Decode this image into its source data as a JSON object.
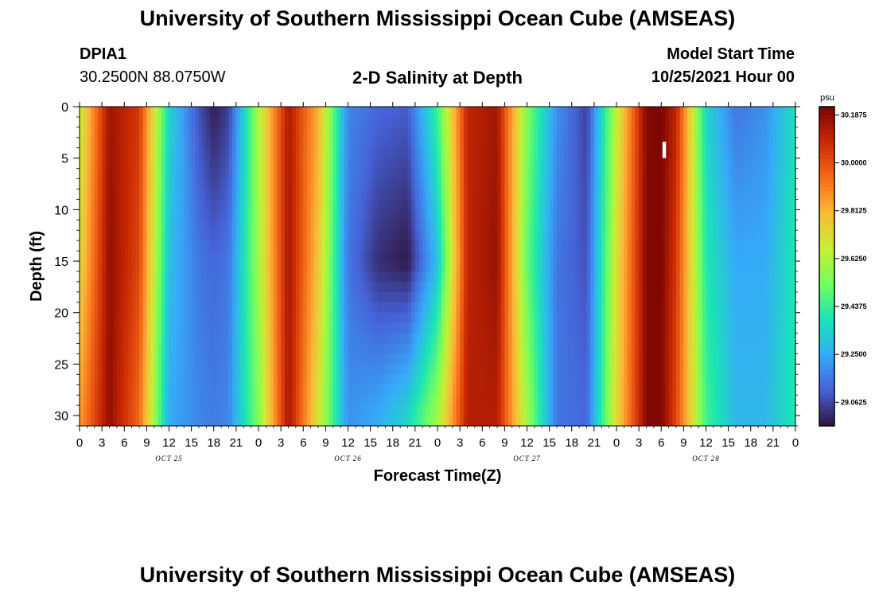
{
  "header": {
    "title": "University of Southern Mississippi Ocean Cube (AMSEAS)",
    "station_id": "DPIA1",
    "station_coords": "30.2500N  88.0750W",
    "plot_title": "2-D Salinity at Depth",
    "model_start_label": "Model Start Time",
    "model_start_value": "10/25/2021 Hour 00"
  },
  "footer": {
    "title": "University of Southern Mississippi Ocean Cube (AMSEAS)"
  },
  "chart_data": {
    "type": "heatmap",
    "title": "2-D Salinity at Depth",
    "xlabel": "Forecast Time(Z)",
    "ylabel": "Depth (ft)",
    "x_ticks": [
      "0",
      "3",
      "6",
      "9",
      "12",
      "15",
      "18",
      "21",
      "0",
      "3",
      "6",
      "9",
      "12",
      "15",
      "18",
      "21",
      "0",
      "3",
      "6",
      "9",
      "12",
      "15",
      "18",
      "21",
      "0",
      "3",
      "6",
      "9",
      "12",
      "15",
      "18",
      "21",
      "0"
    ],
    "x_hours_range": [
      0,
      96
    ],
    "date_labels": [
      {
        "label": "OCT 25",
        "hour": 12
      },
      {
        "label": "OCT 26",
        "hour": 36
      },
      {
        "label": "OCT 27",
        "hour": 60
      },
      {
        "label": "OCT 28",
        "hour": 84
      }
    ],
    "y_ticks": [
      "0",
      "5",
      "10",
      "15",
      "20",
      "25",
      "30"
    ],
    "ylim": [
      0,
      31
    ],
    "y_inverted": true,
    "colorbar": {
      "unit": "psu",
      "vmin": 28.97,
      "vmax": 30.22,
      "labels": [
        "30.1875",
        "30.0000",
        "29.8125",
        "29.6250",
        "29.4375",
        "29.2500",
        "29.0625"
      ],
      "colors": [
        "#30123b",
        "#4662d7",
        "#36aaf9",
        "#1ae4b6",
        "#72fe5e",
        "#c7ef34",
        "#faba39",
        "#f66b19",
        "#ca2a04",
        "#7a0403"
      ]
    },
    "marker": {
      "label": "I",
      "hour": 78.4,
      "depth_ft": 4
    },
    "series": [
      {
        "name": "salinity_depth_0ft",
        "hours": [
          0,
          4,
          8,
          12,
          16,
          18,
          20,
          24,
          28,
          32,
          36,
          40,
          44,
          48,
          52,
          56,
          60,
          64,
          68,
          72,
          76,
          78,
          80,
          84,
          88,
          92,
          96
        ],
        "values": [
          29.65,
          30.16,
          30.05,
          29.35,
          29.08,
          28.99,
          29.05,
          29.62,
          30.14,
          29.82,
          29.18,
          29.12,
          29.1,
          29.45,
          30.1,
          30.15,
          29.55,
          29.2,
          29.05,
          29.65,
          30.2,
          30.22,
          30.1,
          29.35,
          29.15,
          29.2,
          29.38
        ]
      },
      {
        "name": "salinity_depth_15ft",
        "hours": [
          0,
          4,
          8,
          12,
          16,
          18,
          20,
          24,
          28,
          32,
          36,
          40,
          44,
          48,
          52,
          56,
          60,
          64,
          68,
          72,
          76,
          78,
          80,
          84,
          88,
          92,
          96
        ],
        "values": [
          29.72,
          30.18,
          30.02,
          29.3,
          29.15,
          29.12,
          29.15,
          29.6,
          30.15,
          29.78,
          29.15,
          29.02,
          28.98,
          29.3,
          30.1,
          30.17,
          29.5,
          29.15,
          29.08,
          29.7,
          30.2,
          30.21,
          30.05,
          29.4,
          29.25,
          29.25,
          29.4
        ]
      },
      {
        "name": "salinity_depth_30ft",
        "hours": [
          0,
          4,
          8,
          12,
          16,
          18,
          20,
          24,
          28,
          32,
          36,
          40,
          44,
          48,
          52,
          56,
          60,
          64,
          68,
          72,
          76,
          78,
          80,
          84,
          88,
          92,
          96
        ],
        "values": [
          29.85,
          30.18,
          29.95,
          29.25,
          29.18,
          29.16,
          29.18,
          29.55,
          30.15,
          29.7,
          29.2,
          29.25,
          29.35,
          29.6,
          30.12,
          30.12,
          29.6,
          29.15,
          29.12,
          29.72,
          30.2,
          30.21,
          30.02,
          29.45,
          29.28,
          29.28,
          29.4
        ]
      }
    ]
  }
}
